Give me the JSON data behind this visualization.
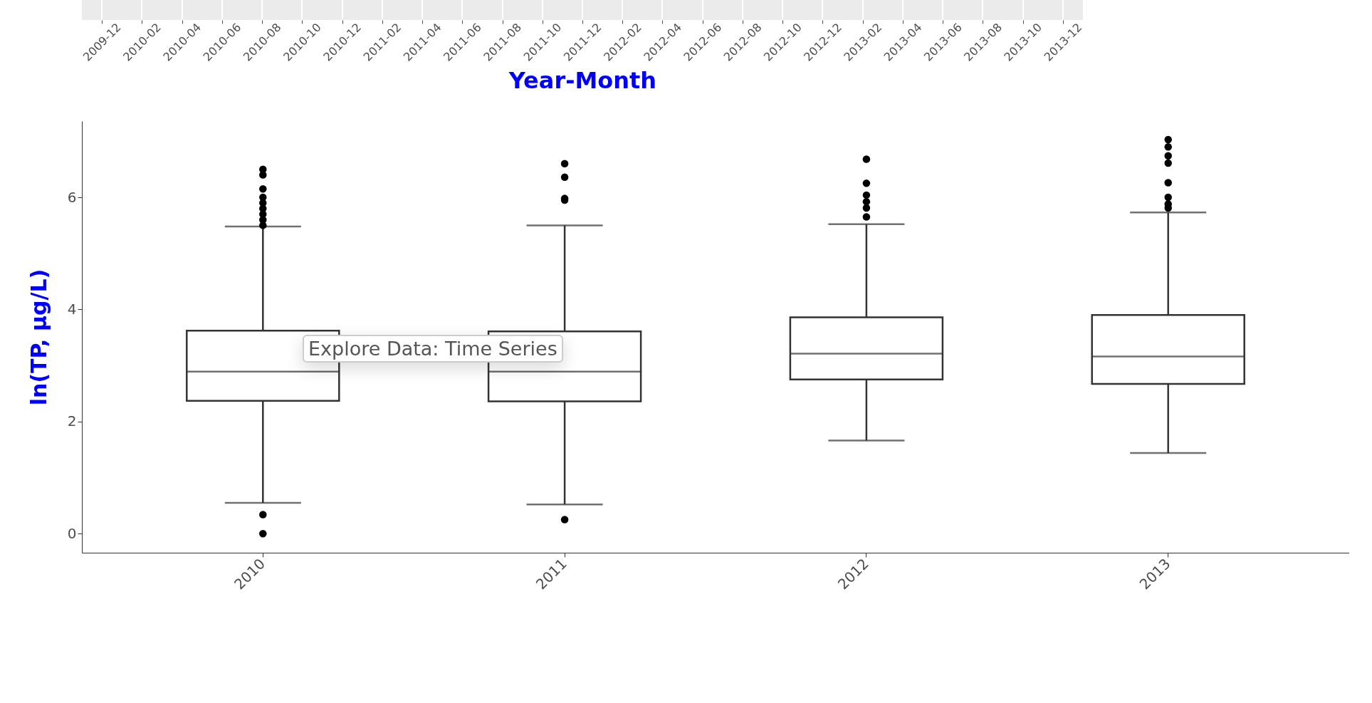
{
  "chart_data": [
    {
      "type": "other",
      "xlabel": "Year-Month",
      "categories": [
        "2009-12",
        "2010-02",
        "2010-04",
        "2010-06",
        "2010-08",
        "2010-10",
        "2010-12",
        "2011-02",
        "2011-04",
        "2011-06",
        "2011-08",
        "2011-10",
        "2011-12",
        "2012-02",
        "2012-04",
        "2012-06",
        "2012-08",
        "2012-10",
        "2012-12",
        "2013-02",
        "2013-04",
        "2013-06",
        "2013-08",
        "2013-10",
        "2013-12"
      ]
    },
    {
      "type": "box",
      "ylabel": "ln(TP, μg/L)",
      "categories": [
        "2010",
        "2011",
        "2012",
        "2013"
      ],
      "ylim": [
        -0.34,
        7.36
      ],
      "yticks": [
        0,
        2,
        4,
        6
      ],
      "annotations": [
        "Explore Data: Time Series"
      ],
      "boxes": [
        {
          "low": 0.55,
          "q1": 2.37,
          "median": 2.89,
          "q3": 3.62,
          "high": 5.48,
          "outliers": [
            0,
            0.34,
            5.5,
            5.6,
            5.7,
            5.8,
            5.9,
            6.0,
            6.15,
            6.4,
            6.5
          ]
        },
        {
          "low": 0.52,
          "q1": 2.36,
          "median": 2.89,
          "q3": 3.61,
          "high": 5.5,
          "outliers": [
            0.25,
            5.95,
            5.98,
            6.36,
            6.6
          ]
        },
        {
          "low": 1.66,
          "q1": 2.75,
          "median": 3.21,
          "q3": 3.86,
          "high": 5.52,
          "outliers": [
            5.65,
            5.81,
            5.92,
            6.04,
            6.25,
            6.68
          ]
        },
        {
          "low": 1.44,
          "q1": 2.67,
          "median": 3.16,
          "q3": 3.9,
          "high": 5.73,
          "outliers": [
            5.81,
            5.88,
            6.0,
            6.26,
            6.61,
            6.74,
            6.9,
            7.03
          ]
        }
      ]
    }
  ]
}
